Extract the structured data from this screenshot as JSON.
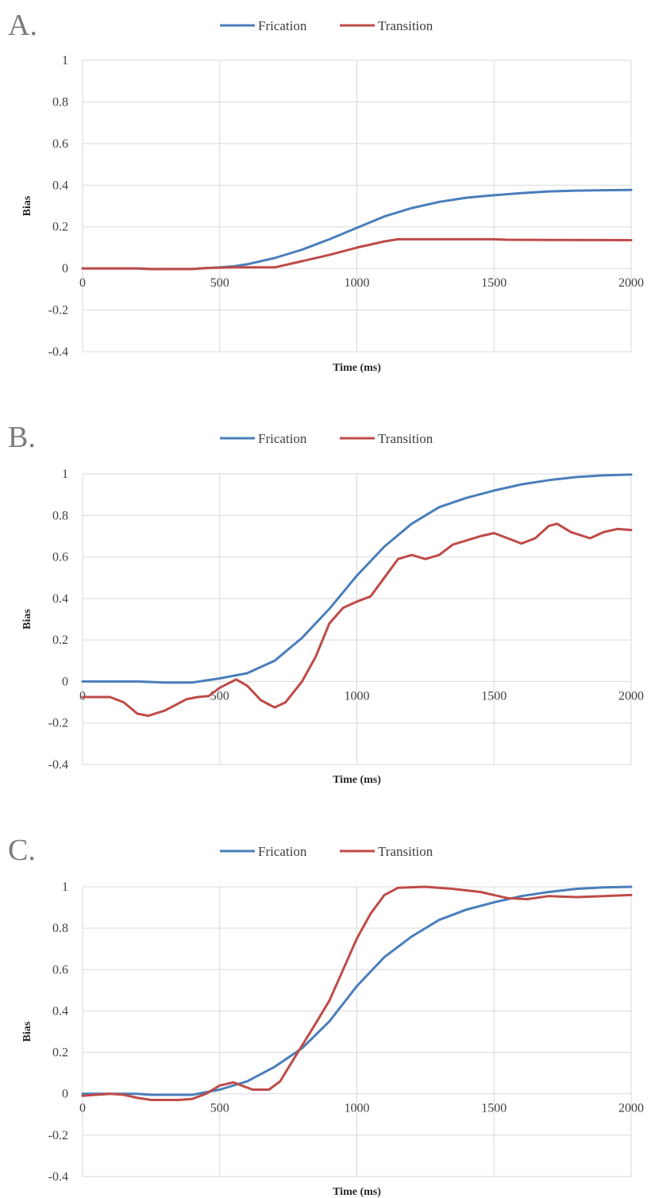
{
  "colors": {
    "frication": "#4a7ebb",
    "transition": "#be4b48"
  },
  "chart_data": [
    {
      "panel": "A.",
      "type": "line",
      "title": "",
      "xlabel": "Time (ms)",
      "ylabel": "Bias",
      "xlim": [
        0,
        2000
      ],
      "ylim": [
        -0.4,
        1
      ],
      "xticks": [
        0,
        500,
        1000,
        1500,
        2000
      ],
      "yticks": [
        -0.4,
        -0.2,
        0,
        0.2,
        0.4,
        0.6,
        0.8,
        1
      ],
      "legend": "top-center",
      "grid": true,
      "series": [
        {
          "name": "Frication",
          "color": "#4a7ebb",
          "points": [
            [
              0,
              0
            ],
            [
              200,
              0
            ],
            [
              250,
              -0.003
            ],
            [
              300,
              -0.003
            ],
            [
              400,
              -0.002
            ],
            [
              500,
              0.005
            ],
            [
              550,
              0.01
            ],
            [
              600,
              0.02
            ],
            [
              700,
              0.05
            ],
            [
              800,
              0.09
            ],
            [
              900,
              0.14
            ],
            [
              1000,
              0.195
            ],
            [
              1100,
              0.25
            ],
            [
              1200,
              0.29
            ],
            [
              1300,
              0.32
            ],
            [
              1400,
              0.34
            ],
            [
              1500,
              0.352
            ],
            [
              1600,
              0.362
            ],
            [
              1700,
              0.37
            ],
            [
              1800,
              0.374
            ],
            [
              1900,
              0.376
            ],
            [
              2000,
              0.377
            ]
          ]
        },
        {
          "name": "Transition",
          "color": "#be4b48",
          "points": [
            [
              0,
              0
            ],
            [
              200,
              0
            ],
            [
              250,
              -0.003
            ],
            [
              400,
              -0.003
            ],
            [
              450,
              0.002
            ],
            [
              550,
              0.005
            ],
            [
              700,
              0.005
            ],
            [
              800,
              0.035
            ],
            [
              900,
              0.065
            ],
            [
              1000,
              0.1
            ],
            [
              1100,
              0.13
            ],
            [
              1150,
              0.14
            ],
            [
              1300,
              0.14
            ],
            [
              1500,
              0.14
            ],
            [
              1550,
              0.138
            ],
            [
              1700,
              0.137
            ],
            [
              2000,
              0.136
            ]
          ]
        }
      ]
    },
    {
      "panel": "B.",
      "type": "line",
      "title": "",
      "xlabel": "Time (ms)",
      "ylabel": "Bias",
      "xlim": [
        0,
        2000
      ],
      "ylim": [
        -0.4,
        1
      ],
      "xticks": [
        0,
        500,
        1000,
        1500,
        2000
      ],
      "yticks": [
        -0.4,
        -0.2,
        0,
        0.2,
        0.4,
        0.6,
        0.8,
        1
      ],
      "legend": "top-center",
      "grid": true,
      "series": [
        {
          "name": "Frication",
          "color": "#4a7ebb",
          "points": [
            [
              0,
              0
            ],
            [
              200,
              0
            ],
            [
              300,
              -0.005
            ],
            [
              400,
              -0.005
            ],
            [
              500,
              0.015
            ],
            [
              600,
              0.04
            ],
            [
              700,
              0.1
            ],
            [
              800,
              0.21
            ],
            [
              900,
              0.35
            ],
            [
              1000,
              0.51
            ],
            [
              1100,
              0.65
            ],
            [
              1200,
              0.76
            ],
            [
              1300,
              0.84
            ],
            [
              1400,
              0.885
            ],
            [
              1500,
              0.92
            ],
            [
              1600,
              0.95
            ],
            [
              1700,
              0.97
            ],
            [
              1800,
              0.985
            ],
            [
              1900,
              0.993
            ],
            [
              2000,
              0.997
            ]
          ]
        },
        {
          "name": "Transition",
          "color": "#be4b48",
          "points": [
            [
              0,
              -0.075
            ],
            [
              100,
              -0.075
            ],
            [
              150,
              -0.1
            ],
            [
              200,
              -0.155
            ],
            [
              240,
              -0.165
            ],
            [
              300,
              -0.14
            ],
            [
              380,
              -0.085
            ],
            [
              420,
              -0.075
            ],
            [
              460,
              -0.07
            ],
            [
              500,
              -0.03
            ],
            [
              560,
              0.01
            ],
            [
              600,
              -0.02
            ],
            [
              650,
              -0.09
            ],
            [
              700,
              -0.125
            ],
            [
              740,
              -0.1
            ],
            [
              800,
              0.0
            ],
            [
              850,
              0.12
            ],
            [
              900,
              0.28
            ],
            [
              950,
              0.355
            ],
            [
              1000,
              0.385
            ],
            [
              1050,
              0.41
            ],
            [
              1100,
              0.5
            ],
            [
              1150,
              0.59
            ],
            [
              1200,
              0.61
            ],
            [
              1250,
              0.59
            ],
            [
              1300,
              0.61
            ],
            [
              1350,
              0.66
            ],
            [
              1400,
              0.68
            ],
            [
              1450,
              0.7
            ],
            [
              1500,
              0.715
            ],
            [
              1550,
              0.69
            ],
            [
              1600,
              0.665
            ],
            [
              1650,
              0.69
            ],
            [
              1700,
              0.75
            ],
            [
              1730,
              0.76
            ],
            [
              1780,
              0.72
            ],
            [
              1850,
              0.69
            ],
            [
              1900,
              0.72
            ],
            [
              1950,
              0.735
            ],
            [
              2000,
              0.73
            ]
          ]
        }
      ]
    },
    {
      "panel": "C.",
      "type": "line",
      "title": "",
      "xlabel": "Time (ms)",
      "ylabel": "Bias",
      "xlim": [
        0,
        2000
      ],
      "ylim": [
        -0.4,
        1
      ],
      "xticks": [
        0,
        500,
        1000,
        1500,
        2000
      ],
      "yticks": [
        -0.4,
        -0.2,
        0,
        0.2,
        0.4,
        0.6,
        0.8,
        1
      ],
      "legend": "top-center",
      "grid": true,
      "series": [
        {
          "name": "Frication",
          "color": "#4a7ebb",
          "points": [
            [
              0,
              0
            ],
            [
              200,
              0
            ],
            [
              250,
              -0.005
            ],
            [
              400,
              -0.005
            ],
            [
              500,
              0.02
            ],
            [
              600,
              0.06
            ],
            [
              700,
              0.13
            ],
            [
              800,
              0.22
            ],
            [
              900,
              0.35
            ],
            [
              1000,
              0.52
            ],
            [
              1100,
              0.66
            ],
            [
              1200,
              0.76
            ],
            [
              1300,
              0.84
            ],
            [
              1400,
              0.89
            ],
            [
              1500,
              0.925
            ],
            [
              1600,
              0.955
            ],
            [
              1700,
              0.975
            ],
            [
              1800,
              0.99
            ],
            [
              1900,
              0.997
            ],
            [
              2000,
              1.0
            ]
          ]
        },
        {
          "name": "Transition",
          "color": "#be4b48",
          "points": [
            [
              0,
              -0.01
            ],
            [
              100,
              0.0
            ],
            [
              150,
              -0.005
            ],
            [
              200,
              -0.02
            ],
            [
              250,
              -0.03
            ],
            [
              350,
              -0.03
            ],
            [
              400,
              -0.025
            ],
            [
              450,
              0.0
            ],
            [
              500,
              0.04
            ],
            [
              550,
              0.055
            ],
            [
              580,
              0.04
            ],
            [
              620,
              0.02
            ],
            [
              680,
              0.02
            ],
            [
              720,
              0.06
            ],
            [
              780,
              0.19
            ],
            [
              850,
              0.34
            ],
            [
              900,
              0.45
            ],
            [
              950,
              0.6
            ],
            [
              1000,
              0.75
            ],
            [
              1050,
              0.87
            ],
            [
              1100,
              0.96
            ],
            [
              1150,
              0.995
            ],
            [
              1250,
              1.0
            ],
            [
              1350,
              0.99
            ],
            [
              1450,
              0.975
            ],
            [
              1550,
              0.945
            ],
            [
              1620,
              0.94
            ],
            [
              1700,
              0.955
            ],
            [
              1800,
              0.95
            ],
            [
              1900,
              0.955
            ],
            [
              2000,
              0.96
            ]
          ]
        }
      ]
    }
  ]
}
